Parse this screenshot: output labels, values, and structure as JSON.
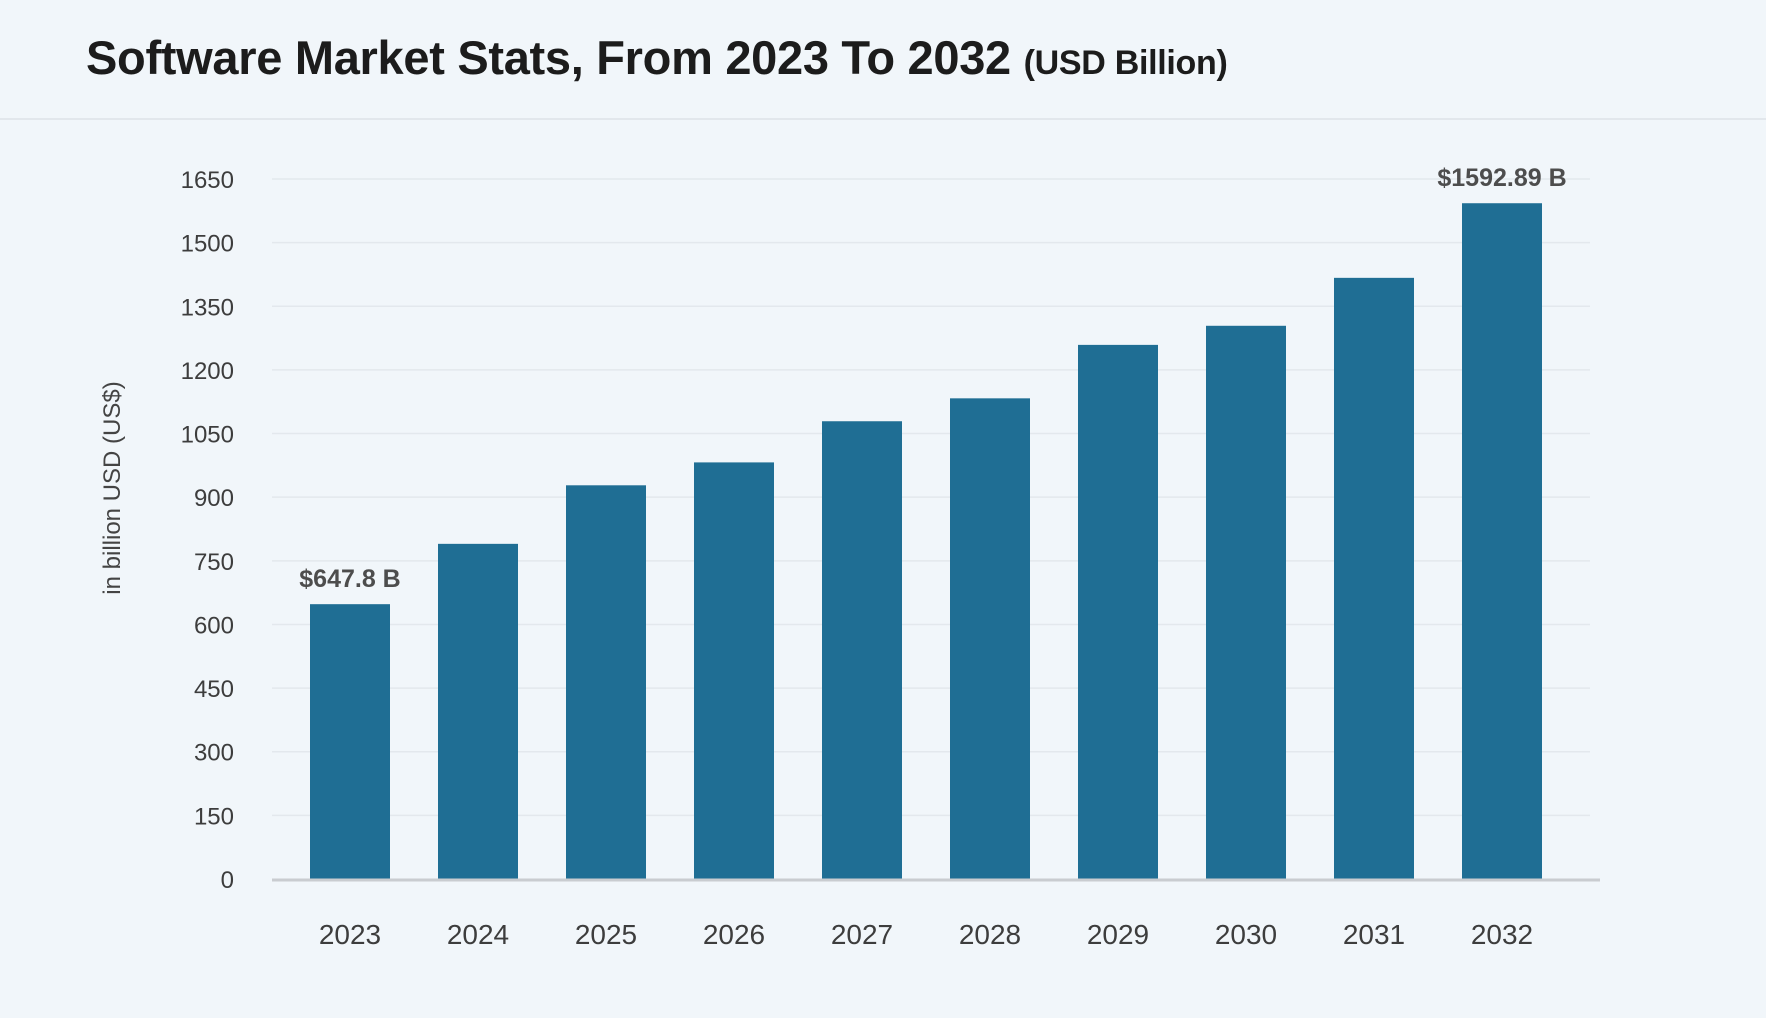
{
  "header": {
    "title": "Software Market Stats, From 2023 To 2032",
    "unit": "(USD Billion)"
  },
  "chart_data": {
    "type": "bar",
    "title": "Software Market Stats, From 2023 To 2032 (USD Billion)",
    "xlabel": "",
    "ylabel": "in billion USD (US$)",
    "categories": [
      "2023",
      "2024",
      "2025",
      "2026",
      "2027",
      "2028",
      "2029",
      "2030",
      "2031",
      "2032"
    ],
    "values": [
      647.8,
      790,
      928,
      982,
      1079,
      1133,
      1259,
      1304,
      1417,
      1592.89
    ],
    "ylim": [
      0,
      1650
    ],
    "yticks": [
      0,
      150,
      300,
      450,
      600,
      750,
      900,
      1050,
      1200,
      1350,
      1500,
      1650
    ],
    "grid": true,
    "bar_color": "#1f6e94",
    "data_labels": [
      {
        "index": 0,
        "text": "$647.8 B"
      },
      {
        "index": 9,
        "text": "$1592.89 B"
      }
    ]
  }
}
